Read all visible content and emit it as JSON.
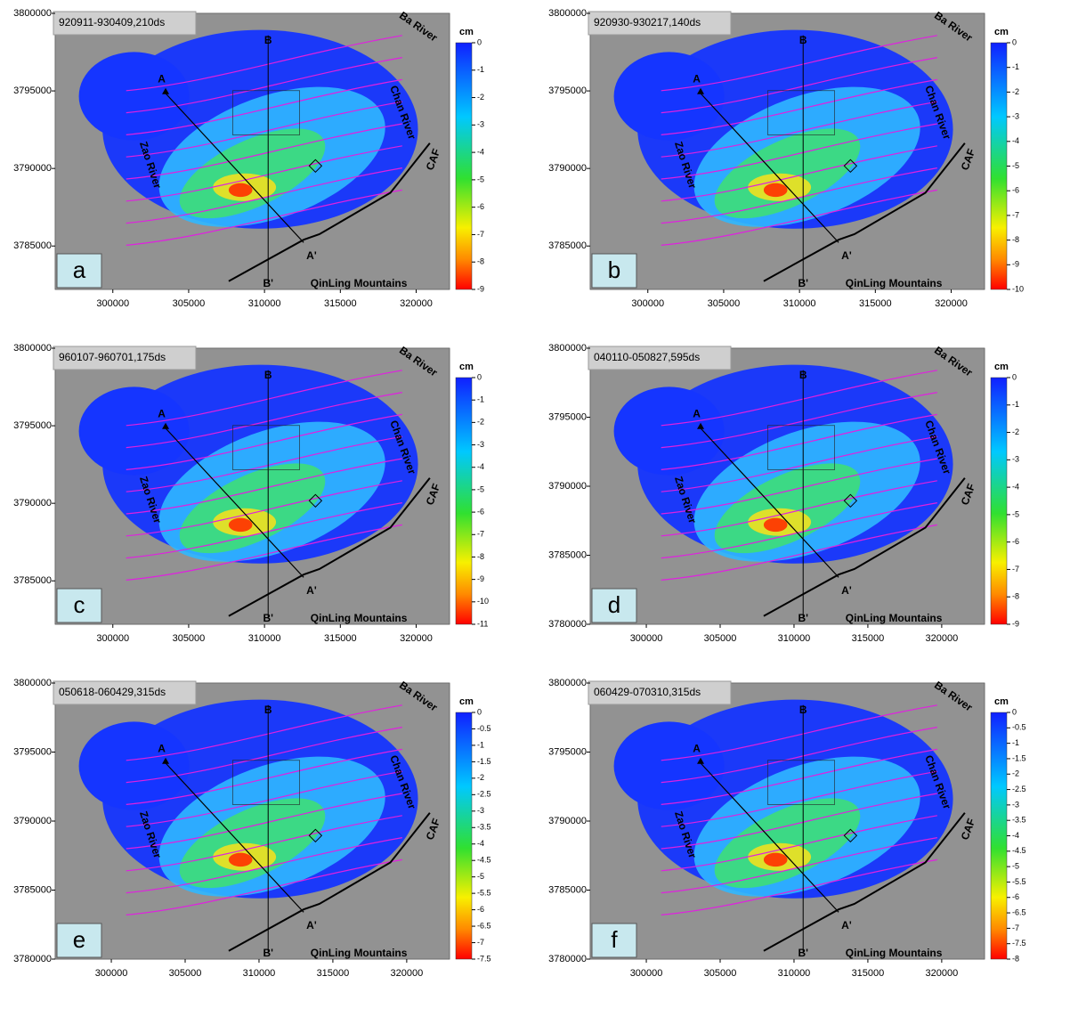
{
  "panels": [
    {
      "letter": "a",
      "title": "920911-930409,210ds",
      "unit": "cm",
      "xlim": [
        296200,
        322200
      ],
      "ylim": [
        3782200,
        3800000
      ],
      "xticks": [
        300000,
        305000,
        310000,
        315000,
        320000
      ],
      "yticks": [
        3800000,
        3795000,
        3790000,
        3785000
      ],
      "colorbar_ticks": [
        0,
        -1,
        -2,
        -3,
        -4,
        -5,
        -6,
        -7,
        -8,
        -9
      ]
    },
    {
      "letter": "b",
      "title": "920930-930217,140ds",
      "unit": "cm",
      "xlim": [
        296200,
        322200
      ],
      "ylim": [
        3782200,
        3800000
      ],
      "xticks": [
        300000,
        305000,
        310000,
        315000,
        320000
      ],
      "yticks": [
        3800000,
        3795000,
        3790000,
        3785000
      ],
      "colorbar_ticks": [
        0,
        -1,
        -2,
        -3,
        -4,
        -5,
        -6,
        -7,
        -8,
        -9,
        -10
      ]
    },
    {
      "letter": "c",
      "title": "960107-960701,175ds",
      "unit": "cm",
      "xlim": [
        296200,
        322200
      ],
      "ylim": [
        3782200,
        3800000
      ],
      "xticks": [
        300000,
        305000,
        310000,
        315000,
        320000
      ],
      "yticks": [
        3800000,
        3795000,
        3790000,
        3785000
      ],
      "colorbar_ticks": [
        0,
        -1,
        -2,
        -3,
        -4,
        -5,
        -6,
        -7,
        -8,
        -9,
        -10,
        -11
      ]
    },
    {
      "letter": "d",
      "title": "040110-050827,595ds",
      "unit": "cm",
      "xlim": [
        296200,
        322900
      ],
      "ylim": [
        3780000,
        3800000
      ],
      "xticks": [
        300000,
        305000,
        310000,
        315000,
        320000
      ],
      "yticks": [
        3800000,
        3795000,
        3790000,
        3785000,
        3780000
      ],
      "colorbar_ticks": [
        0,
        -1,
        -2,
        -3,
        -4,
        -5,
        -6,
        -7,
        -8,
        -9
      ]
    },
    {
      "letter": "e",
      "title": "050618-060429,315ds",
      "unit": "cm",
      "xlim": [
        296200,
        322900
      ],
      "ylim": [
        3780000,
        3800000
      ],
      "xticks": [
        300000,
        305000,
        310000,
        315000,
        320000
      ],
      "yticks": [
        3800000,
        3795000,
        3790000,
        3785000,
        3780000
      ],
      "colorbar_ticks": [
        0,
        -0.5,
        -1,
        -1.5,
        -2,
        -2.5,
        -3,
        -3.5,
        -4,
        -4.5,
        -5,
        -5.5,
        -6,
        -6.5,
        -7,
        -7.5
      ]
    },
    {
      "letter": "f",
      "title": "060429-070310,315ds",
      "unit": "cm",
      "xlim": [
        296200,
        322900
      ],
      "ylim": [
        3780000,
        3800000
      ],
      "xticks": [
        300000,
        305000,
        310000,
        315000,
        320000
      ],
      "yticks": [
        3800000,
        3795000,
        3790000,
        3785000,
        3780000
      ],
      "colorbar_ticks": [
        0,
        -0.5,
        -1,
        -1.5,
        -2,
        -2.5,
        -3,
        -3.5,
        -4,
        -4.5,
        -5,
        -5.5,
        -6,
        -6.5,
        -7,
        -7.5,
        -8
      ]
    }
  ],
  "map_labels": {
    "a": "A",
    "a_prime": "A'",
    "b": "B",
    "b_prime": "B'",
    "zao": "Zao River",
    "chan": "Chan River",
    "ba": "Ba River",
    "caf": "CAF",
    "qinling": "QinLing Mountains"
  }
}
